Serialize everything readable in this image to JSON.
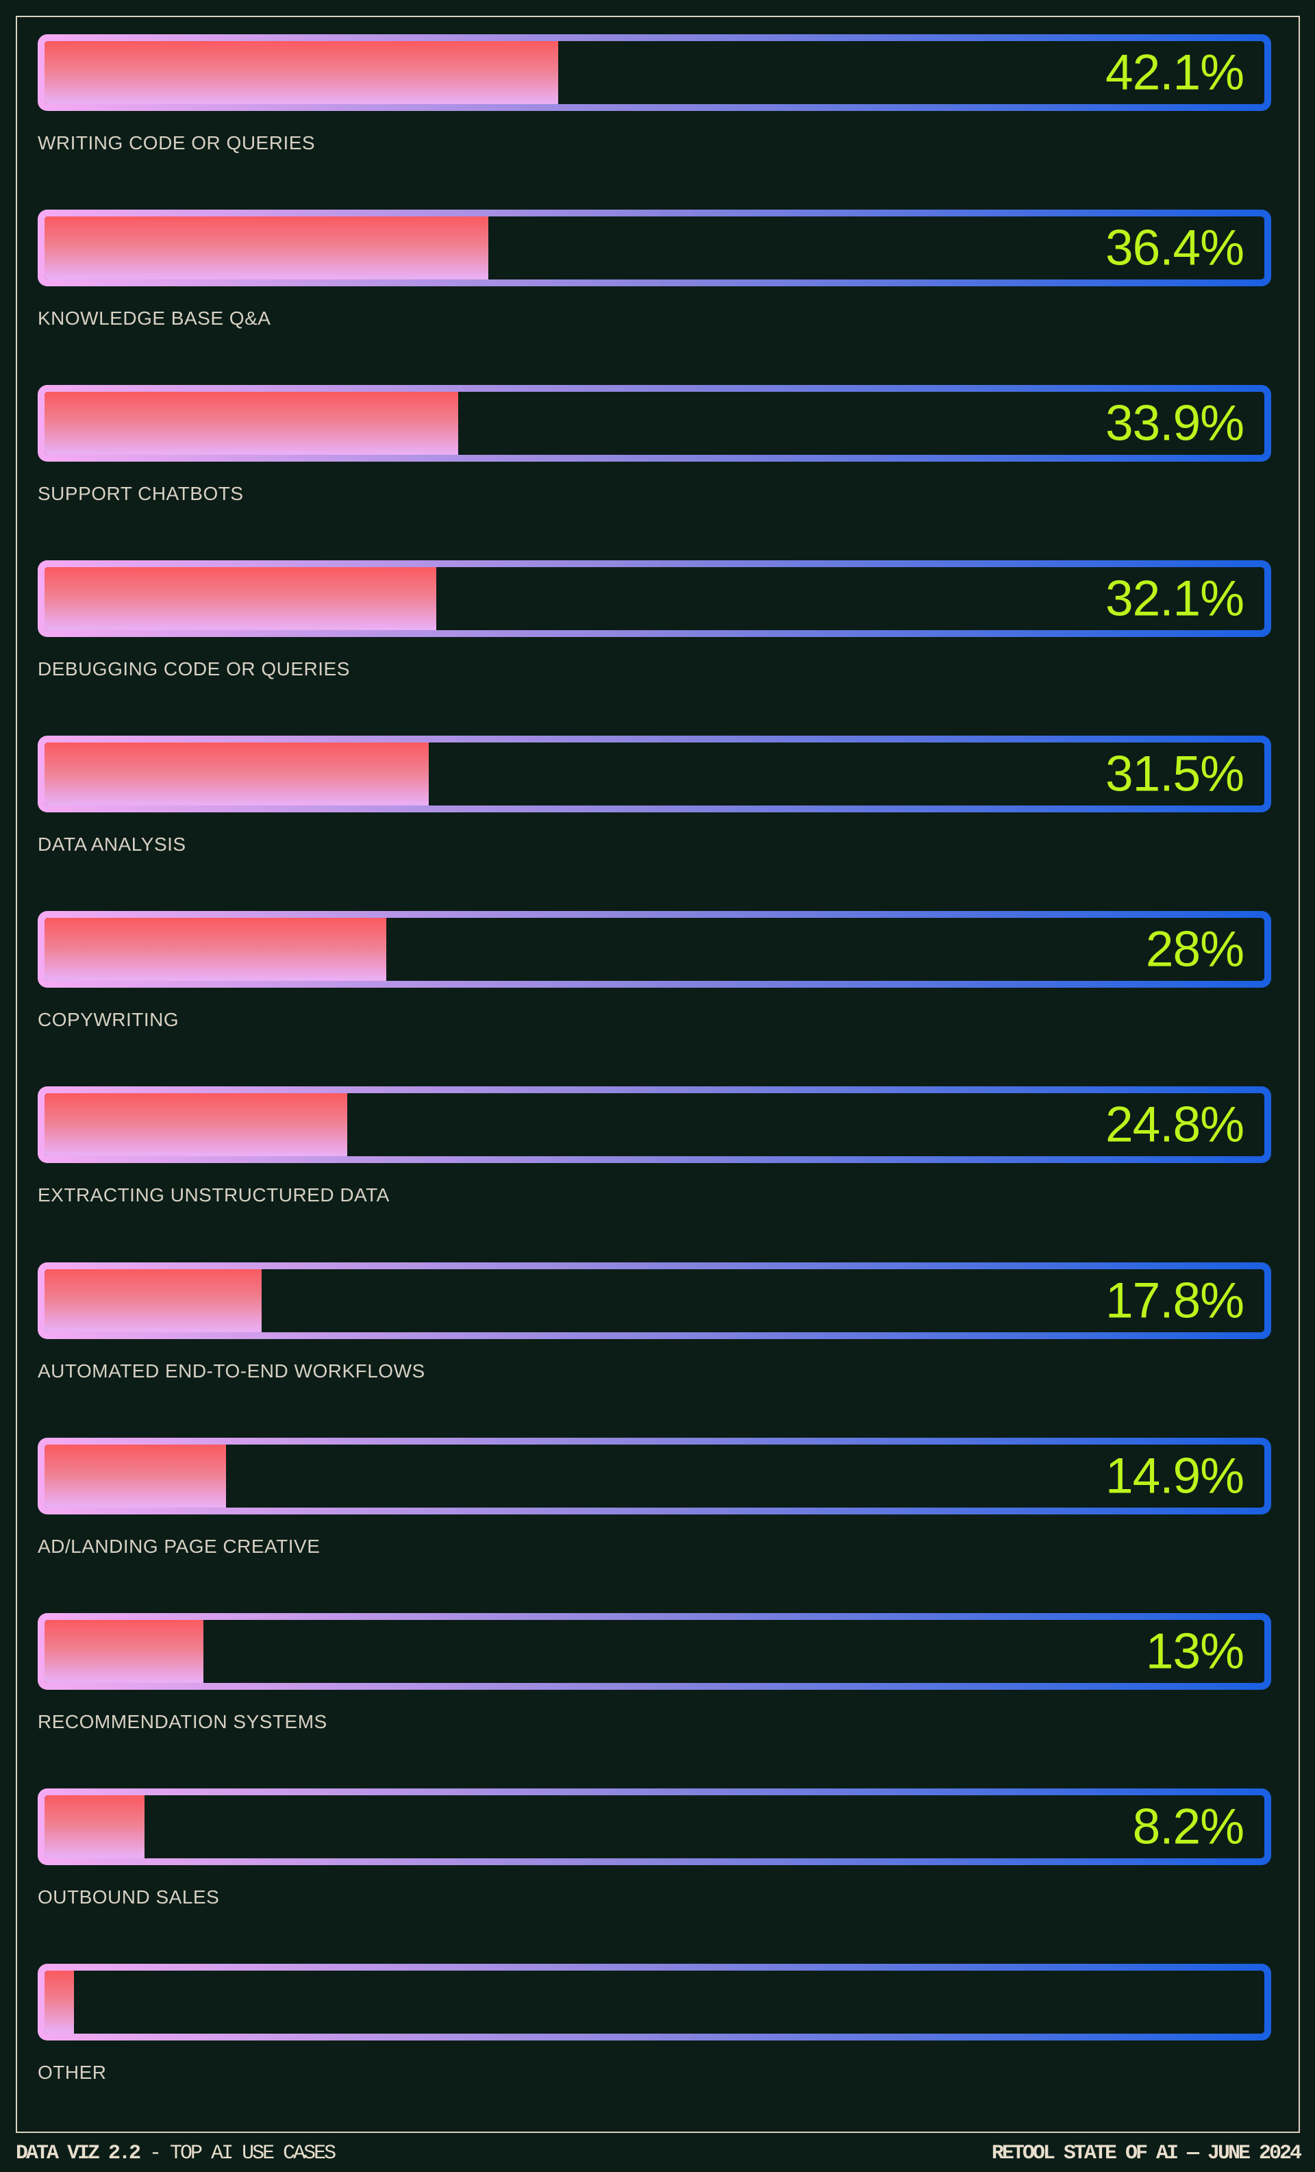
{
  "colors": {
    "background": "#0c1d17",
    "frame": "#dcd2bf",
    "accent_green": "#bcf41c",
    "bar_border_pink": "#f5abf3",
    "bar_border_mid": "#8a85de",
    "bar_border_blue": "#1a60e2",
    "bar_fill_top": "#fb5a60",
    "bar_fill_mid": "#f07f90",
    "bar_fill_bottom": "#eaaef2",
    "category_label": "#d8d1c4",
    "footer_text": "#e8decd"
  },
  "chart_data": {
    "type": "bar",
    "orientation": "horizontal",
    "title": "TOP AI USE CASES",
    "xlim": [
      0,
      100
    ],
    "grid": false,
    "legend": false,
    "value_label_position": "inside-right",
    "categories": [
      "WRITING CODE OR QUERIES",
      "KNOWLEDGE BASE Q&A",
      "SUPPORT CHATBOTS",
      "DEBUGGING CODE OR QUERIES",
      "DATA ANALYSIS",
      "COPYWRITING",
      "EXTRACTING UNSTRUCTURED DATA",
      "AUTOMATED END-TO-END WORKFLOWS",
      "AD/LANDING PAGE CREATIVE",
      "RECOMMENDATION SYSTEMS",
      "OUTBOUND SALES",
      "OTHER"
    ],
    "values": [
      42.1,
      36.4,
      33.9,
      32.1,
      31.5,
      28,
      24.8,
      17.8,
      14.9,
      13,
      8.2,
      2.4
    ],
    "value_labels": [
      "42.1%",
      "36.4%",
      "33.9%",
      "32.1%",
      "31.5%",
      "28%",
      "24.8%",
      "17.8%",
      "14.9%",
      "13%",
      "8.2%",
      ""
    ]
  },
  "footer": {
    "left_strong": "DATA VIZ 2.2",
    "left_rest": " - TOP AI USE CASES",
    "right": "RETOOL STATE OF AI — JUNE 2024"
  }
}
